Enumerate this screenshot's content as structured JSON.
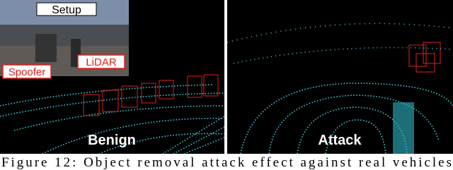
{
  "figure": {
    "panels": [
      {
        "label": "Benign",
        "inset": {
          "title": "Setup",
          "labels": [
            "Spoofer",
            "LiDAR"
          ]
        }
      },
      {
        "label": "Attack"
      }
    ],
    "caption": "Figure 12: Object removal attack effect against real vehicles"
  }
}
